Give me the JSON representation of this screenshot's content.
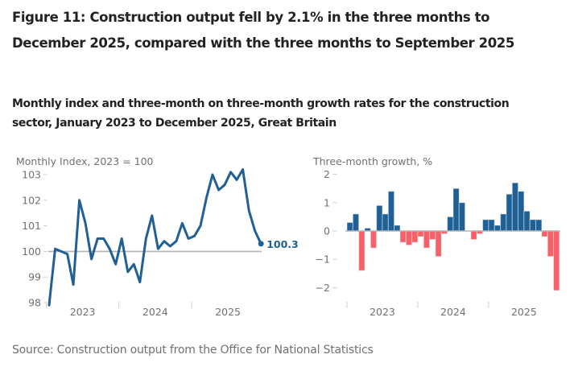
{
  "figure": {
    "title": "Figure 11: Construction output fell by 2.1% in the three months to December 2025, compared with the three months to September 2025",
    "subtitle": "Monthly index and three-month on three-month growth rates for the construction sector, January 2023 to December 2025, Great Britain",
    "source": "Source: Construction output from the Office for National Statistics"
  },
  "colors": {
    "line": "#206095",
    "positive_bar": "#206095",
    "negative_bar": "#F66068",
    "reference_line": "#B3B3B3",
    "tick": "#D0D0D0"
  },
  "chart_data": [
    {
      "type": "line",
      "title": "Monthly Index, 2023 = 100",
      "xlabel": "",
      "ylabel": "Monthly Index, 2023 = 100",
      "ylim": [
        98,
        103
      ],
      "yticks": [
        103,
        102,
        101,
        100,
        99,
        98
      ],
      "xtick_labels": [
        "2023",
        "2024",
        "2025"
      ],
      "reference_line": 100,
      "end_label": "100.3",
      "x": [
        "Jan 2023",
        "Feb 2023",
        "Mar 2023",
        "Apr 2023",
        "May 2023",
        "Jun 2023",
        "Jul 2023",
        "Aug 2023",
        "Sep 2023",
        "Oct 2023",
        "Nov 2023",
        "Dec 2023",
        "Jan 2024",
        "Feb 2024",
        "Mar 2024",
        "Apr 2024",
        "May 2024",
        "Jun 2024",
        "Jul 2024",
        "Aug 2024",
        "Sep 2024",
        "Oct 2024",
        "Nov 2024",
        "Dec 2024",
        "Jan 2025",
        "Feb 2025",
        "Mar 2025",
        "Apr 2025",
        "May 2025",
        "Jun 2025",
        "Jul 2025",
        "Aug 2025",
        "Sep 2025",
        "Oct 2025",
        "Nov 2025",
        "Dec 2025"
      ],
      "series": [
        {
          "name": "Monthly Index",
          "values": [
            97.9,
            100.1,
            100.0,
            99.9,
            98.7,
            102.0,
            101.1,
            99.7,
            100.5,
            100.5,
            100.1,
            99.5,
            100.5,
            99.2,
            99.5,
            98.8,
            100.5,
            101.4,
            100.1,
            100.4,
            100.2,
            100.4,
            101.1,
            100.5,
            100.6,
            101.0,
            102.1,
            103.0,
            102.4,
            102.6,
            103.1,
            102.8,
            103.2,
            101.6,
            100.8,
            100.3
          ]
        }
      ]
    },
    {
      "type": "bar",
      "title": "Three-month growth, %",
      "xlabel": "",
      "ylabel": "Three-month growth, %",
      "ylim": [
        -2,
        2
      ],
      "yticks": [
        2,
        1,
        0,
        -1,
        -2
      ],
      "ytick_labels": [
        "2",
        "1",
        "0",
        "−1",
        "−2"
      ],
      "xtick_labels": [
        "2023",
        "2024",
        "2025"
      ],
      "categories": [
        "Jan 2023",
        "Feb 2023",
        "Mar 2023",
        "Apr 2023",
        "May 2023",
        "Jun 2023",
        "Jul 2023",
        "Aug 2023",
        "Sep 2023",
        "Oct 2023",
        "Nov 2023",
        "Dec 2023",
        "Jan 2024",
        "Feb 2024",
        "Mar 2024",
        "Apr 2024",
        "May 2024",
        "Jun 2024",
        "Jul 2024",
        "Aug 2024",
        "Sep 2024",
        "Oct 2024",
        "Nov 2024",
        "Dec 2024",
        "Jan 2025",
        "Feb 2025",
        "Mar 2025",
        "Apr 2025",
        "May 2025",
        "Jun 2025",
        "Jul 2025",
        "Aug 2025",
        "Sep 2025",
        "Oct 2025",
        "Nov 2025",
        "Dec 2025"
      ],
      "series": [
        {
          "name": "Three-month growth",
          "values": [
            0.3,
            0.6,
            -1.4,
            0.1,
            -0.6,
            0.9,
            0.6,
            1.4,
            0.2,
            -0.4,
            -0.5,
            -0.4,
            -0.2,
            -0.6,
            -0.3,
            -0.9,
            -0.1,
            0.5,
            1.5,
            1.0,
            0.0,
            -0.3,
            -0.1,
            0.4,
            0.4,
            0.2,
            0.6,
            1.3,
            1.7,
            1.4,
            0.7,
            0.4,
            0.4,
            -0.2,
            -0.9,
            -2.1
          ]
        }
      ]
    }
  ]
}
